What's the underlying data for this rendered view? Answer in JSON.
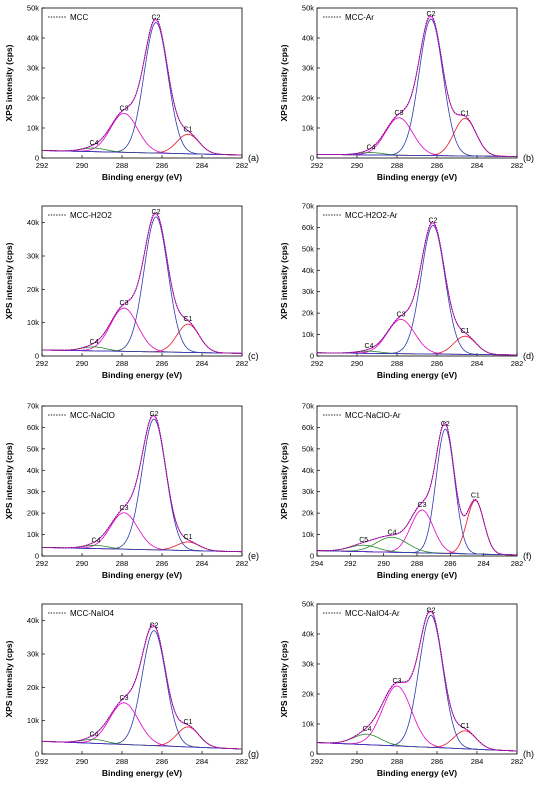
{
  "figure": {
    "title": "",
    "colors": {
      "envelope": "#2a2a2a",
      "fit": "#ff00ff",
      "background": "#3333cc",
      "C1": "#e8141e",
      "C2": "#2b3aa8",
      "C3": "#e000c8",
      "C4": "#2a8a2a",
      "C5": "#2a8a2a"
    }
  },
  "chart_data": [
    {
      "type": "line",
      "panel_letter": "(a)",
      "legend": "MCC",
      "xlabel": "Binding energy (eV)",
      "ylabel": "XPS intensity (cps)",
      "xlim": [
        292,
        282
      ],
      "ylim": [
        0,
        50000
      ],
      "xticks": [
        292,
        290,
        288,
        286,
        284,
        282
      ],
      "yticks": [
        0,
        10000,
        20000,
        30000,
        40000,
        50000
      ],
      "ytick_labels": [
        "0",
        "10k",
        "20k",
        "30k",
        "40k",
        "50k"
      ],
      "baseline": {
        "left": 2500,
        "right": 1000
      },
      "peaks": [
        {
          "name": "C1",
          "center": 284.7,
          "height": 6500,
          "fwhm": 1.3
        },
        {
          "name": "C2",
          "center": 286.3,
          "height": 43500,
          "fwhm": 1.4
        },
        {
          "name": "C3",
          "center": 287.9,
          "height": 13000,
          "fwhm": 1.6
        },
        {
          "name": "C4",
          "center": 289.4,
          "height": 1200,
          "fwhm": 1.4
        }
      ]
    },
    {
      "type": "line",
      "panel_letter": "(b)",
      "legend": "MCC-Ar",
      "xlabel": "Binding energy (eV)",
      "ylabel": "XPS intensity (cps)",
      "xlim": [
        292,
        282
      ],
      "ylim": [
        0,
        50000
      ],
      "xticks": [
        292,
        290,
        288,
        286,
        284,
        282
      ],
      "yticks": [
        0,
        10000,
        20000,
        30000,
        40000,
        50000
      ],
      "ytick_labels": [
        "0",
        "10k",
        "20k",
        "30k",
        "40k",
        "50k"
      ],
      "baseline": {
        "left": 1200,
        "right": 500
      },
      "peaks": [
        {
          "name": "C1",
          "center": 284.6,
          "height": 12500,
          "fwhm": 1.3
        },
        {
          "name": "C2",
          "center": 286.3,
          "height": 45500,
          "fwhm": 1.4
        },
        {
          "name": "C3",
          "center": 287.9,
          "height": 12500,
          "fwhm": 1.6
        },
        {
          "name": "C4",
          "center": 289.3,
          "height": 800,
          "fwhm": 1.4
        }
      ]
    },
    {
      "type": "line",
      "panel_letter": "(c)",
      "legend": "MCC-H2O2",
      "xlabel": "Binding energy (eV)",
      "ylabel": "XPS intensity (cps)",
      "xlim": [
        292,
        282
      ],
      "ylim": [
        0,
        45000
      ],
      "xticks": [
        292,
        290,
        288,
        286,
        284,
        282
      ],
      "yticks": [
        0,
        10000,
        20000,
        30000,
        40000
      ],
      "ytick_labels": [
        "0",
        "10k",
        "20k",
        "30k",
        "40k"
      ],
      "baseline": {
        "left": 1800,
        "right": 800
      },
      "peaks": [
        {
          "name": "C1",
          "center": 284.7,
          "height": 8500,
          "fwhm": 1.3
        },
        {
          "name": "C2",
          "center": 286.3,
          "height": 40500,
          "fwhm": 1.4
        },
        {
          "name": "C3",
          "center": 287.9,
          "height": 13000,
          "fwhm": 1.6
        },
        {
          "name": "C4",
          "center": 289.4,
          "height": 1200,
          "fwhm": 1.4
        }
      ]
    },
    {
      "type": "line",
      "panel_letter": "(d)",
      "legend": "MCC-H2O2-Ar",
      "xlabel": "Binding energy (eV)",
      "ylabel": "XPS intensity (cps)",
      "xlim": [
        292,
        282
      ],
      "ylim": [
        0,
        70000
      ],
      "xticks": [
        292,
        290,
        288,
        286,
        284,
        282
      ],
      "yticks": [
        0,
        10000,
        20000,
        30000,
        40000,
        50000,
        60000,
        70000
      ],
      "ytick_labels": [
        "0",
        "10k",
        "20k",
        "30k",
        "40k",
        "50k",
        "60k",
        "70k"
      ],
      "baseline": {
        "left": 1500,
        "right": 500
      },
      "peaks": [
        {
          "name": "C1",
          "center": 284.6,
          "height": 8500,
          "fwhm": 1.3
        },
        {
          "name": "C2",
          "center": 286.2,
          "height": 60000,
          "fwhm": 1.4
        },
        {
          "name": "C3",
          "center": 287.8,
          "height": 16000,
          "fwhm": 1.6
        },
        {
          "name": "C4",
          "center": 289.4,
          "height": 1000,
          "fwhm": 1.4
        }
      ]
    },
    {
      "type": "line",
      "panel_letter": "(e)",
      "legend": "MCC-NaClO",
      "xlabel": "Binding energy (eV)",
      "ylabel": "XPS intensity (cps)",
      "xlim": [
        292,
        282
      ],
      "ylim": [
        0,
        70000
      ],
      "xticks": [
        292,
        290,
        288,
        286,
        284,
        282
      ],
      "yticks": [
        0,
        10000,
        20000,
        30000,
        40000,
        50000,
        60000,
        70000
      ],
      "ytick_labels": [
        "0",
        "10k",
        "20k",
        "30k",
        "40k",
        "50k",
        "60k",
        "70k"
      ],
      "baseline": {
        "left": 4000,
        "right": 2000
      },
      "peaks": [
        {
          "name": "C1",
          "center": 284.7,
          "height": 4000,
          "fwhm": 1.3
        },
        {
          "name": "C2",
          "center": 286.4,
          "height": 61000,
          "fwhm": 1.4
        },
        {
          "name": "C3",
          "center": 287.9,
          "height": 17000,
          "fwhm": 1.6
        },
        {
          "name": "C4",
          "center": 289.3,
          "height": 1500,
          "fwhm": 1.4
        }
      ]
    },
    {
      "type": "line",
      "panel_letter": "(f)",
      "legend": "MCC-NaClO-Ar",
      "xlabel": "Binding energy (eV)",
      "ylabel": "XPS intensity (cps)",
      "xlim": [
        294,
        282
      ],
      "ylim": [
        0,
        70000
      ],
      "xticks": [
        294,
        292,
        290,
        288,
        286,
        284,
        282
      ],
      "yticks": [
        0,
        10000,
        20000,
        30000,
        40000,
        50000,
        60000,
        70000
      ],
      "ytick_labels": [
        "0",
        "10k",
        "20k",
        "30k",
        "40k",
        "50k",
        "60k",
        "70k"
      ],
      "baseline": {
        "left": 2500,
        "right": 500
      },
      "peaks": [
        {
          "name": "C1",
          "center": 284.5,
          "height": 25000,
          "fwhm": 1.2
        },
        {
          "name": "C2",
          "center": 286.3,
          "height": 58000,
          "fwhm": 1.3
        },
        {
          "name": "C3",
          "center": 287.7,
          "height": 20000,
          "fwhm": 1.6
        },
        {
          "name": "C4",
          "center": 289.5,
          "height": 7000,
          "fwhm": 2.2
        },
        {
          "name": "C5",
          "center": 291.2,
          "height": 3000,
          "fwhm": 2.0
        }
      ]
    },
    {
      "type": "line",
      "panel_letter": "(g)",
      "legend": "MCC-NaIO4",
      "xlabel": "Binding energy (eV)",
      "ylabel": "XPS intensity (cps)",
      "xlim": [
        292,
        282
      ],
      "ylim": [
        0,
        45000
      ],
      "xticks": [
        292,
        290,
        288,
        286,
        284,
        282
      ],
      "yticks": [
        0,
        10000,
        20000,
        30000,
        40000
      ],
      "ytick_labels": [
        "0",
        "10k",
        "20k",
        "30k",
        "40k"
      ],
      "baseline": {
        "left": 3800,
        "right": 1500
      },
      "peaks": [
        {
          "name": "C1",
          "center": 284.7,
          "height": 6000,
          "fwhm": 1.3
        },
        {
          "name": "C2",
          "center": 286.4,
          "height": 34500,
          "fwhm": 1.4
        },
        {
          "name": "C3",
          "center": 287.9,
          "height": 12500,
          "fwhm": 1.7
        },
        {
          "name": "C4",
          "center": 289.4,
          "height": 1200,
          "fwhm": 1.4
        }
      ]
    },
    {
      "type": "line",
      "panel_letter": "(h)",
      "legend": "MCC-NaIO4-Ar",
      "xlabel": "Binding energy (eV)",
      "ylabel": "XPS intensity (cps)",
      "xlim": [
        292,
        282
      ],
      "ylim": [
        0,
        50000
      ],
      "xticks": [
        292,
        290,
        288,
        286,
        284,
        282
      ],
      "yticks": [
        0,
        10000,
        20000,
        30000,
        40000,
        50000
      ],
      "ytick_labels": [
        "0",
        "10k",
        "20k",
        "30k",
        "40k",
        "50k"
      ],
      "baseline": {
        "left": 3800,
        "right": 1000
      },
      "peaks": [
        {
          "name": "C1",
          "center": 284.6,
          "height": 6000,
          "fwhm": 1.3
        },
        {
          "name": "C2",
          "center": 286.3,
          "height": 44000,
          "fwhm": 1.4
        },
        {
          "name": "C3",
          "center": 288.0,
          "height": 20000,
          "fwhm": 1.7
        },
        {
          "name": "C4",
          "center": 289.5,
          "height": 3500,
          "fwhm": 1.6
        }
      ]
    }
  ]
}
